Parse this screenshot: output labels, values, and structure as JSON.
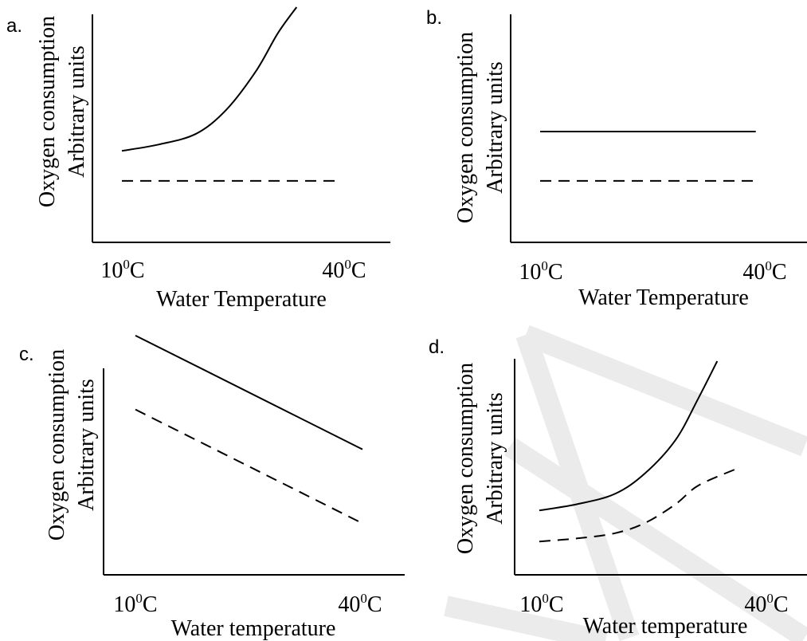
{
  "chart_data": [
    {
      "type": "line",
      "panel_label": "a.",
      "ylabel_line1": "Oxygen consumption",
      "ylabel_line2": "Arbitrary units",
      "xlabel": "Water Temperature",
      "tick_labels": [
        {
          "base": "10",
          "sup": "0",
          "unit": "C"
        },
        {
          "base": "40",
          "sup": "0",
          "unit": "C"
        }
      ],
      "xlim": [
        6,
        46
      ],
      "ylim": [
        0,
        100
      ],
      "series": [
        {
          "style": "solid",
          "x": [
            10,
            15,
            20,
            24,
            28,
            31,
            33.5
          ],
          "y": [
            33,
            36,
            41,
            52,
            70,
            88,
            100
          ]
        },
        {
          "style": "dashed",
          "x": [
            10,
            39
          ],
          "y": [
            19,
            19
          ]
        }
      ]
    },
    {
      "type": "line",
      "panel_label": "b.",
      "ylabel_line1": "Oxygen consumption",
      "ylabel_line2": "Arbitrary units",
      "xlabel": "Water Temperature",
      "tick_labels": [
        {
          "base": "10",
          "sup": "0",
          "unit": "C"
        },
        {
          "base": "40",
          "sup": "0",
          "unit": "C"
        }
      ],
      "xlim": [
        6,
        46
      ],
      "ylim": [
        0,
        100
      ],
      "series": [
        {
          "style": "solid",
          "x": [
            10,
            39
          ],
          "y": [
            42,
            42
          ]
        },
        {
          "style": "dashed",
          "x": [
            10,
            39
          ],
          "y": [
            19,
            19
          ]
        }
      ]
    },
    {
      "type": "line",
      "panel_label": "c.",
      "ylabel_line1": "Oxygen consumption",
      "ylabel_line2": "Arbitrary units",
      "xlabel": "Water temperature",
      "tick_labels": [
        {
          "base": "10",
          "sup": "0",
          "unit": "C"
        },
        {
          "base": "40",
          "sup": "0",
          "unit": "C"
        }
      ],
      "xlim": [
        6,
        46
      ],
      "ylim": [
        0,
        100
      ],
      "series": [
        {
          "style": "solid",
          "x": [
            10,
            40
          ],
          "y": [
            88,
            48
          ]
        },
        {
          "style": "dashed",
          "x": [
            10,
            40
          ],
          "y": [
            62,
            22
          ]
        }
      ]
    },
    {
      "type": "line",
      "panel_label": "d.",
      "ylabel_line1": "Oxygen consumption",
      "ylabel_line2": "Arbitrary units",
      "xlabel": "Water temperature",
      "tick_labels": [
        {
          "base": "10",
          "sup": "0",
          "unit": "C"
        },
        {
          "base": "40",
          "sup": "0",
          "unit": "C"
        }
      ],
      "xlim": [
        6,
        46
      ],
      "ylim": [
        0,
        100
      ],
      "series": [
        {
          "style": "solid",
          "x": [
            10,
            15,
            20,
            24,
            28,
            31,
            33.5
          ],
          "y": [
            28,
            31,
            36,
            46,
            62,
            82,
            100
          ]
        },
        {
          "style": "dashed",
          "x": [
            10,
            15,
            20,
            24,
            28,
            31,
            36
          ],
          "y": [
            13,
            14.5,
            17,
            22,
            31,
            40,
            48
          ]
        }
      ]
    }
  ]
}
